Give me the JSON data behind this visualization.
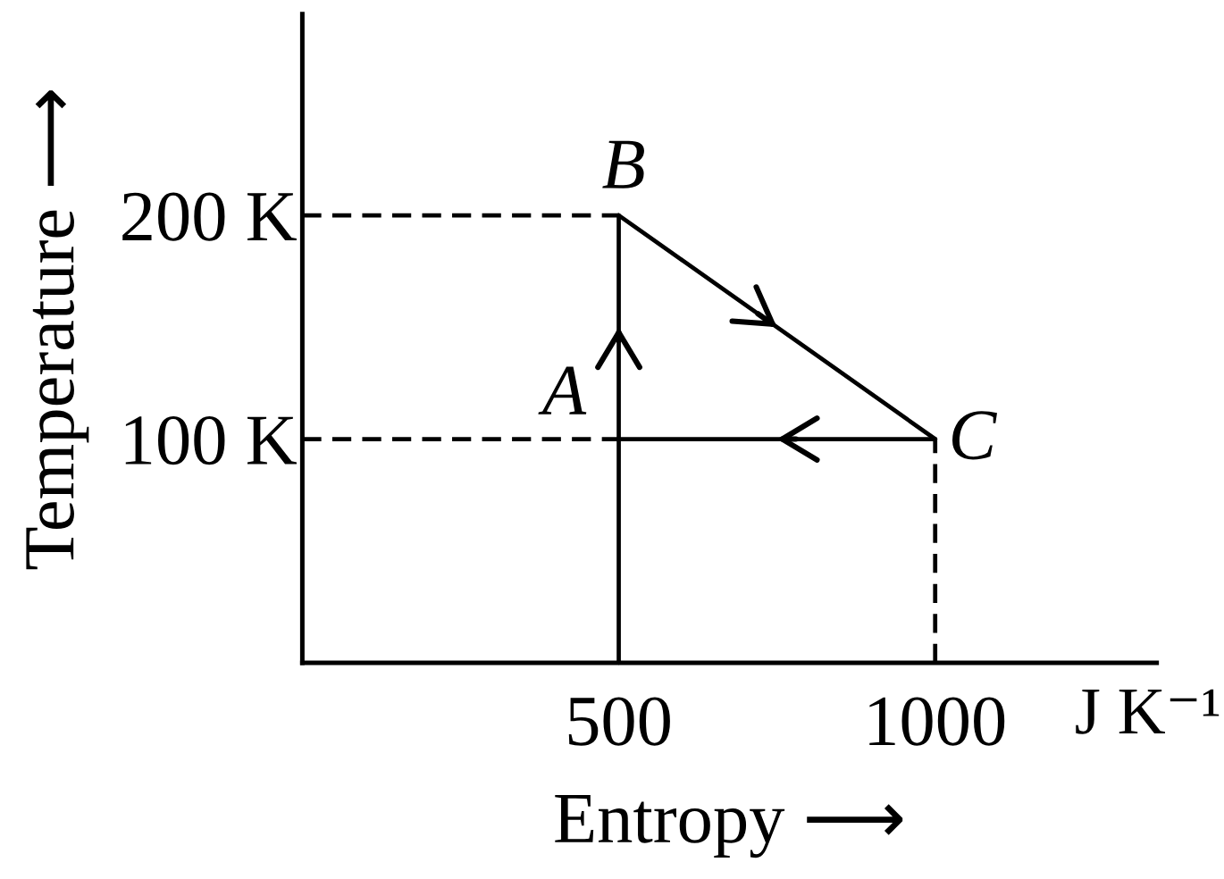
{
  "chart_data": {
    "type": "line",
    "xlabel": "Entropy ⟶",
    "ylabel": "Temperature ⟶",
    "xlim": [
      0,
      1350
    ],
    "ylim": [
      0,
      290
    ],
    "xticks": [
      500,
      1000
    ],
    "yticks": [
      {
        "value": 100,
        "label": "100 K"
      },
      {
        "value": 200,
        "label": "200 K"
      }
    ],
    "series": [
      {
        "color": "#000000",
        "x": [
          500,
          500,
          500
        ],
        "values": [
          0,
          100,
          200
        ],
        "value_labels": [
          null,
          "A",
          "B"
        ]
      },
      {
        "color": "#000000",
        "x": [
          500,
          1000
        ],
        "values": [
          200,
          100
        ],
        "value_labels": [
          null,
          "C"
        ]
      },
      {
        "color": "#000000",
        "x": [
          1000,
          500
        ],
        "values": [
          100,
          100
        ]
      },
      {
        "color": "#000000",
        "x": [
          0,
          500
        ],
        "values": [
          200,
          200
        ],
        "line_style": "dashed"
      },
      {
        "color": "#000000",
        "x": [
          0,
          500
        ],
        "values": [
          100,
          100
        ],
        "line_style": "dashed"
      },
      {
        "color": "#000000",
        "x": [
          1000,
          1000
        ],
        "values": [
          0,
          100
        ],
        "line_style": "dashed"
      }
    ],
    "annotations": [
      "J K⁻¹"
    ]
  }
}
